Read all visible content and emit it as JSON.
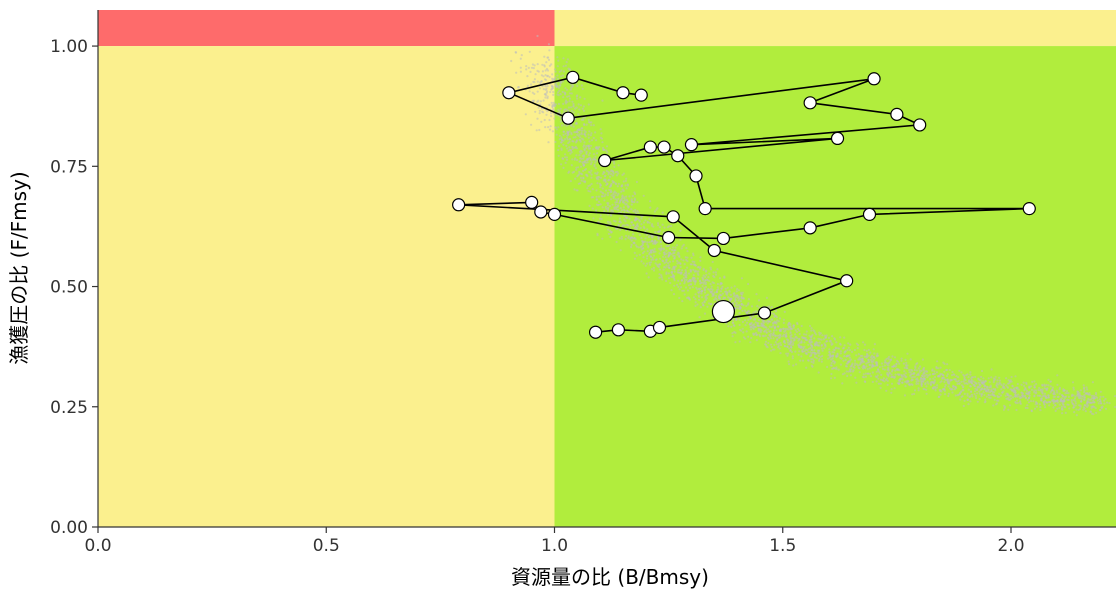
{
  "chart_data": {
    "type": "scatter",
    "title": "",
    "xlabel": "資源量の比 (B/Bmsy)",
    "ylabel": "漁獲圧の比 (F/Fmsy)",
    "xlim": [
      0,
      2.23
    ],
    "ylim": [
      0,
      1.075
    ],
    "x_ticks": [
      0.0,
      0.5,
      1.0,
      1.5,
      2.0
    ],
    "x_tick_labels": [
      "0.0",
      "0.5",
      "1.0",
      "1.5",
      "2.0"
    ],
    "y_ticks": [
      0.0,
      0.25,
      0.5,
      0.75,
      1.0
    ],
    "y_tick_labels": [
      "0.00",
      "0.25",
      "0.50",
      "0.75",
      "1.00"
    ],
    "grid": false,
    "legend": "none",
    "zones": [
      {
        "x": [
          0,
          1
        ],
        "y": [
          1,
          1.075
        ],
        "color": "#fe6b6b"
      },
      {
        "x": [
          1,
          2.23
        ],
        "y": [
          1,
          1.075
        ],
        "color": "#fbf08e"
      },
      {
        "x": [
          0,
          1
        ],
        "y": [
          0,
          1
        ],
        "color": "#fbf08e"
      },
      {
        "x": [
          1,
          2.23
        ],
        "y": [
          0,
          1
        ],
        "color": "#b1ed3d"
      }
    ],
    "uncertainty_cloud": {
      "color": "#bdbdbd",
      "description_points_path": [
        [
          0.97,
          0.96
        ],
        [
          1.05,
          0.8
        ],
        [
          1.15,
          0.65
        ],
        [
          1.3,
          0.52
        ],
        [
          1.45,
          0.42
        ],
        [
          1.6,
          0.36
        ],
        [
          1.8,
          0.31
        ],
        [
          2.0,
          0.28
        ],
        [
          2.2,
          0.26
        ]
      ]
    },
    "trajectory": {
      "line_color": "#000000",
      "point_fill": "#ffffff",
      "point_stroke": "#000000",
      "points": [
        [
          1.09,
          0.405
        ],
        [
          1.14,
          0.41
        ],
        [
          1.21,
          0.407
        ],
        [
          1.23,
          0.415
        ],
        [
          1.46,
          0.445
        ],
        [
          1.64,
          0.512
        ],
        [
          1.35,
          0.575
        ],
        [
          1.26,
          0.645
        ],
        [
          0.79,
          0.67
        ],
        [
          0.95,
          0.675
        ],
        [
          0.97,
          0.655
        ],
        [
          1.0,
          0.65
        ],
        [
          1.25,
          0.602
        ],
        [
          1.37,
          0.6
        ],
        [
          1.56,
          0.622
        ],
        [
          1.69,
          0.65
        ],
        [
          2.04,
          0.662
        ],
        [
          1.33,
          0.662
        ],
        [
          1.31,
          0.73
        ],
        [
          1.27,
          0.772
        ],
        [
          1.24,
          0.79
        ],
        [
          1.21,
          0.79
        ],
        [
          1.11,
          0.762
        ],
        [
          1.62,
          0.808
        ],
        [
          1.3,
          0.795
        ],
        [
          1.8,
          0.836
        ],
        [
          1.75,
          0.858
        ],
        [
          1.56,
          0.882
        ],
        [
          1.7,
          0.932
        ],
        [
          1.03,
          0.85
        ],
        [
          0.9,
          0.903
        ],
        [
          1.04,
          0.935
        ],
        [
          1.15,
          0.903
        ],
        [
          1.19,
          0.898
        ]
      ],
      "current_point": [
        1.37,
        0.448
      ]
    }
  }
}
